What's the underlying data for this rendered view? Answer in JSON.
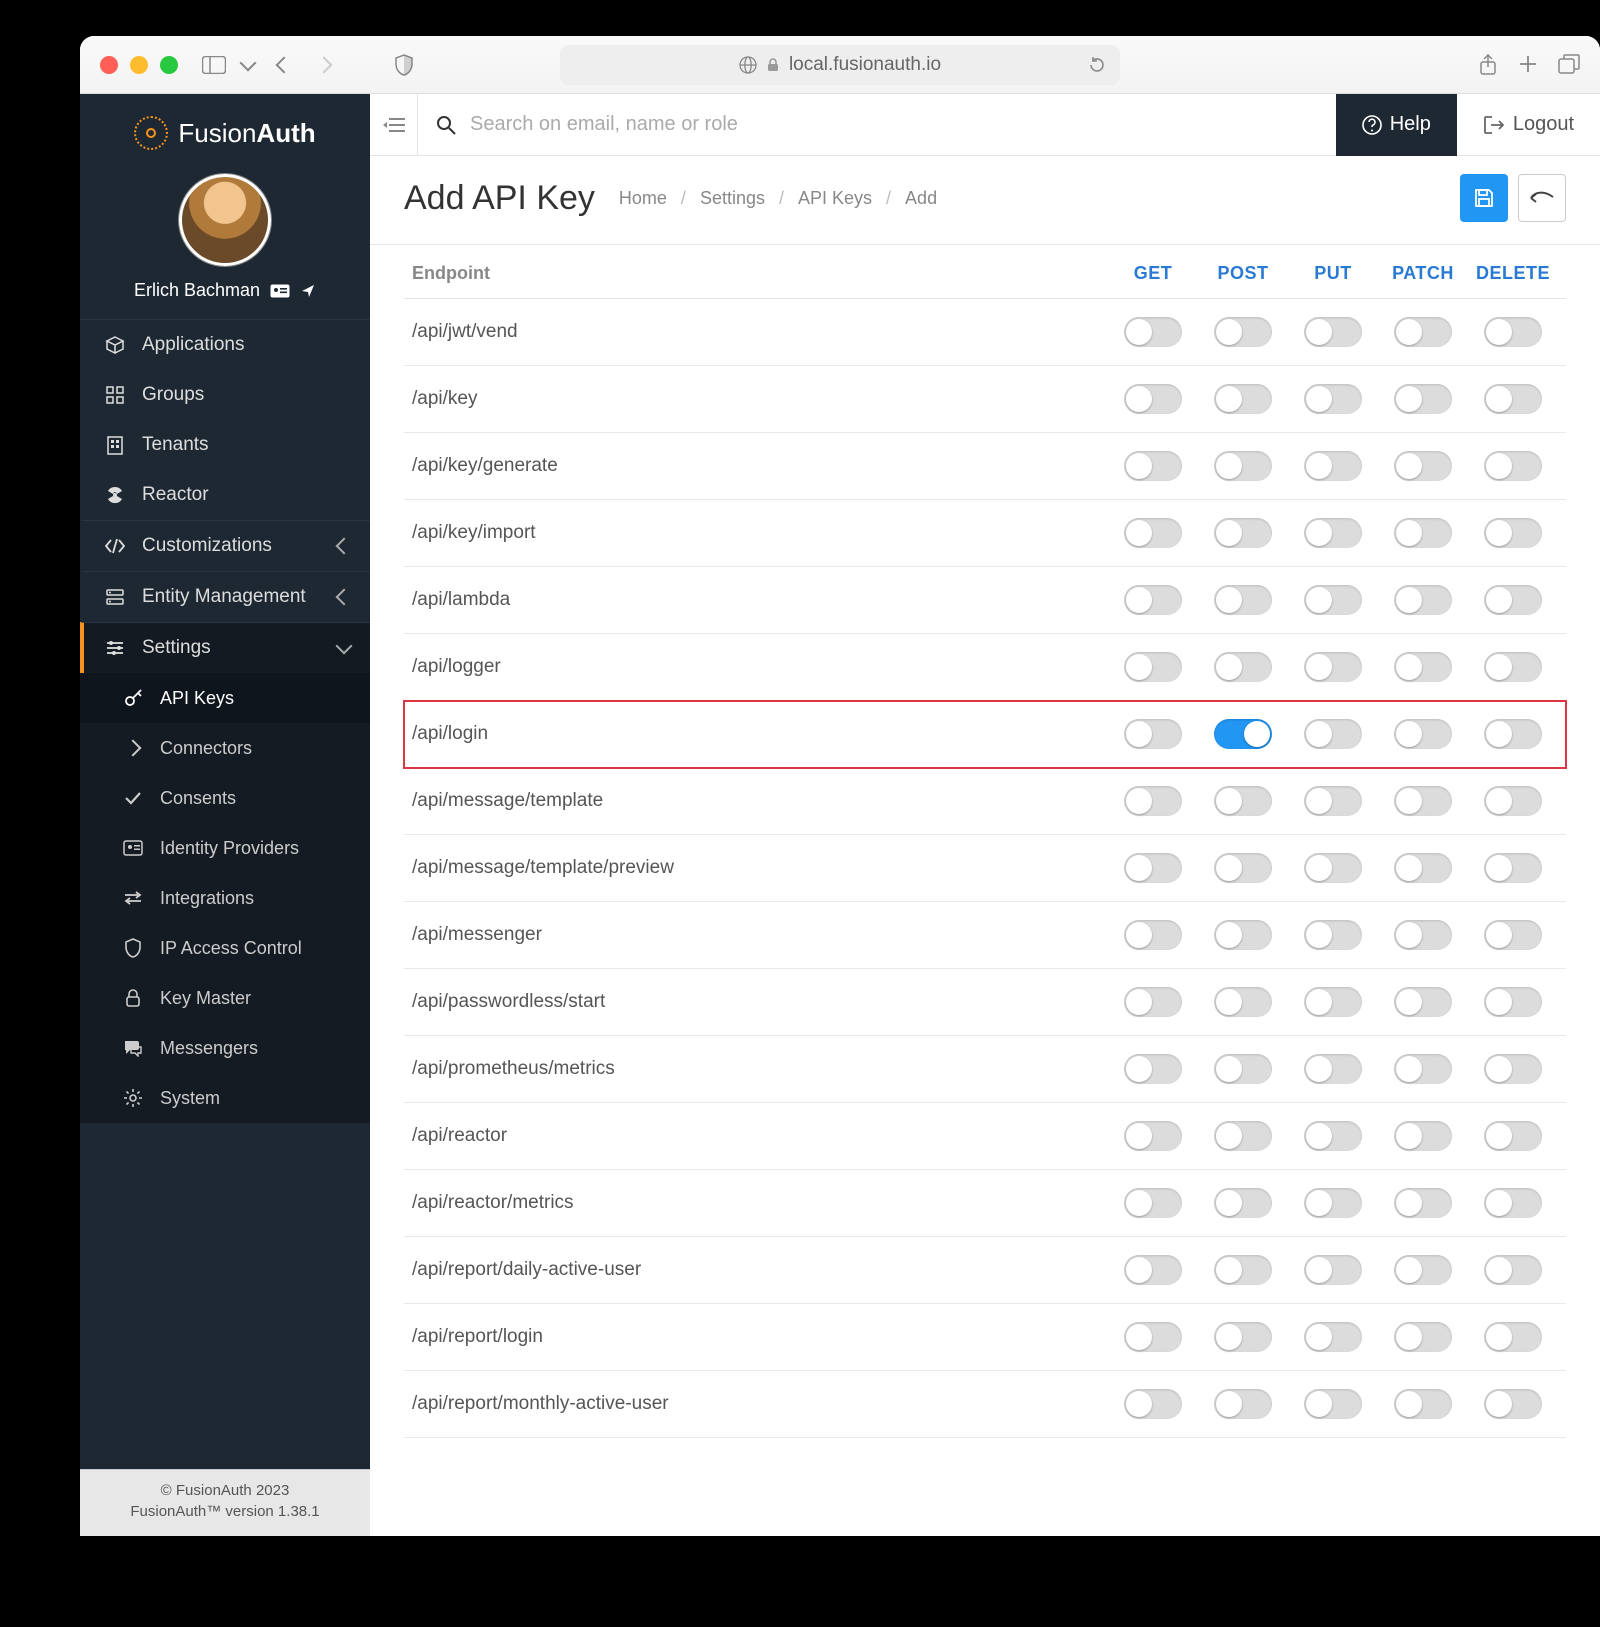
{
  "browser": {
    "url": "local.fusionauth.io"
  },
  "brand": {
    "name_light": "Fusion",
    "name_bold": "Auth"
  },
  "user": {
    "name": "Erlich Bachman"
  },
  "sidebar": {
    "items": [
      {
        "icon": "cube-icon",
        "label": "Applications"
      },
      {
        "icon": "grid-icon",
        "label": "Groups"
      },
      {
        "icon": "building-icon",
        "label": "Tenants"
      },
      {
        "icon": "radiation-icon",
        "label": "Reactor"
      }
    ],
    "groups": [
      {
        "icon": "code-icon",
        "label": "Customizations",
        "open": false
      },
      {
        "icon": "server-icon",
        "label": "Entity Management",
        "open": false
      },
      {
        "icon": "sliders-icon",
        "label": "Settings",
        "open": true
      }
    ],
    "settings_children": [
      {
        "icon": "key-icon",
        "label": "API Keys",
        "active": true
      },
      {
        "icon": "chevron-right-icon",
        "label": "Connectors"
      },
      {
        "icon": "check-icon",
        "label": "Consents"
      },
      {
        "icon": "id-card-icon",
        "label": "Identity Providers"
      },
      {
        "icon": "exchange-icon",
        "label": "Integrations"
      },
      {
        "icon": "shield-icon",
        "label": "IP Access Control"
      },
      {
        "icon": "lock-icon",
        "label": "Key Master"
      },
      {
        "icon": "comments-icon",
        "label": "Messengers"
      },
      {
        "icon": "gear-icon",
        "label": "System"
      }
    ]
  },
  "footer": {
    "copyright": "© FusionAuth 2023",
    "version": "FusionAuth™ version 1.38.1"
  },
  "topbar": {
    "search_placeholder": "Search on email, name or role",
    "help": "Help",
    "logout": "Logout"
  },
  "page": {
    "title": "Add API Key",
    "crumbs": [
      "Home",
      "Settings",
      "API Keys",
      "Add"
    ]
  },
  "table": {
    "header": {
      "endpoint": "Endpoint",
      "methods": [
        "GET",
        "POST",
        "PUT",
        "PATCH",
        "DELETE"
      ]
    },
    "highlight_endpoint": "/api/login",
    "rows": [
      {
        "endpoint": "/api/jwt/vend",
        "states": [
          false,
          false,
          false,
          false,
          false
        ]
      },
      {
        "endpoint": "/api/key",
        "states": [
          false,
          false,
          false,
          false,
          false
        ]
      },
      {
        "endpoint": "/api/key/generate",
        "states": [
          false,
          false,
          false,
          false,
          false
        ]
      },
      {
        "endpoint": "/api/key/import",
        "states": [
          false,
          false,
          false,
          false,
          false
        ]
      },
      {
        "endpoint": "/api/lambda",
        "states": [
          false,
          false,
          false,
          false,
          false
        ]
      },
      {
        "endpoint": "/api/logger",
        "states": [
          false,
          false,
          false,
          false,
          false
        ]
      },
      {
        "endpoint": "/api/login",
        "states": [
          false,
          true,
          false,
          false,
          false
        ]
      },
      {
        "endpoint": "/api/message/template",
        "states": [
          false,
          false,
          false,
          false,
          false
        ]
      },
      {
        "endpoint": "/api/message/template/preview",
        "states": [
          false,
          false,
          false,
          false,
          false
        ]
      },
      {
        "endpoint": "/api/messenger",
        "states": [
          false,
          false,
          false,
          false,
          false
        ]
      },
      {
        "endpoint": "/api/passwordless/start",
        "states": [
          false,
          false,
          false,
          false,
          false
        ]
      },
      {
        "endpoint": "/api/prometheus/metrics",
        "states": [
          false,
          false,
          false,
          false,
          false
        ]
      },
      {
        "endpoint": "/api/reactor",
        "states": [
          false,
          false,
          false,
          false,
          false
        ]
      },
      {
        "endpoint": "/api/reactor/metrics",
        "states": [
          false,
          false,
          false,
          false,
          false
        ]
      },
      {
        "endpoint": "/api/report/daily-active-user",
        "states": [
          false,
          false,
          false,
          false,
          false
        ]
      },
      {
        "endpoint": "/api/report/login",
        "states": [
          false,
          false,
          false,
          false,
          false
        ]
      },
      {
        "endpoint": "/api/report/monthly-active-user",
        "states": [
          false,
          false,
          false,
          false,
          false
        ]
      }
    ]
  },
  "colors": {
    "sidebar_bg": "#1e2832",
    "accent": "#f7941e",
    "link_blue": "#2a7ad4",
    "toggle_on": "#2196f3",
    "highlight_border": "#dc3545"
  }
}
